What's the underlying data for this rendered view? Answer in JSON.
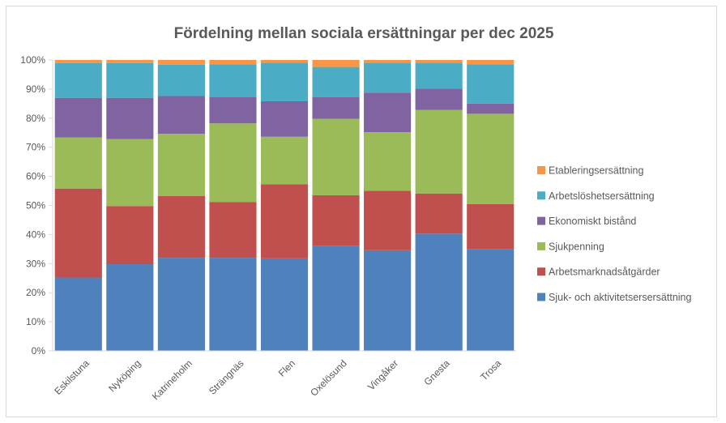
{
  "chart_data": {
    "type": "bar",
    "stacked": true,
    "percent_stacked": true,
    "title": "Fördelning mellan sociala ersättningar per dec 2025",
    "xlabel": "",
    "ylabel": "",
    "ylim": [
      0,
      100
    ],
    "yticks": [
      "0%",
      "10%",
      "20%",
      "30%",
      "40%",
      "50%",
      "60%",
      "70%",
      "80%",
      "90%",
      "100%"
    ],
    "grid": false,
    "legend_position": "right",
    "categories": [
      "Eskilstuna",
      "Nyköping",
      "Katrineholm",
      "Strängnäs",
      "Flen",
      "Oxelösund",
      "Vingåker",
      "Gnesta",
      "Trosa"
    ],
    "series": [
      {
        "name": "Sjuk- och aktivitetsersersättning",
        "color": "#4f81bd",
        "values": [
          25.2,
          29.8,
          32.0,
          32.0,
          31.8,
          36.0,
          34.6,
          40.3,
          35.0
        ]
      },
      {
        "name": "Arbetsmarknadsåtgärder",
        "color": "#c0504d",
        "values": [
          30.6,
          20.0,
          21.2,
          19.2,
          25.5,
          17.5,
          20.4,
          13.8,
          15.5
        ]
      },
      {
        "name": "Sjukpenning",
        "color": "#9bbb59",
        "values": [
          17.6,
          23.0,
          21.4,
          27.0,
          16.3,
          26.3,
          20.2,
          28.7,
          31.0
        ]
      },
      {
        "name": "Ekonomiskt bistånd",
        "color": "#8064a2",
        "values": [
          13.6,
          14.2,
          13.0,
          9.1,
          12.2,
          7.4,
          13.6,
          7.3,
          3.5
        ]
      },
      {
        "name": "Arbetslöshetsersättning",
        "color": "#4bacc6",
        "values": [
          11.9,
          11.9,
          10.8,
          11.2,
          13.3,
          10.4,
          10.2,
          8.9,
          13.5
        ]
      },
      {
        "name": "Etableringsersättning",
        "color": "#f79646",
        "values": [
          1.1,
          1.1,
          1.6,
          1.5,
          0.9,
          2.4,
          1.0,
          1.0,
          1.5
        ]
      }
    ],
    "legend_order": [
      "Etableringsersättning",
      "Arbetslöshetsersättning",
      "Ekonomiskt bistånd",
      "Sjukpenning",
      "Arbetsmarknadsåtgärder",
      "Sjuk- och aktivitetsersersättning"
    ]
  }
}
